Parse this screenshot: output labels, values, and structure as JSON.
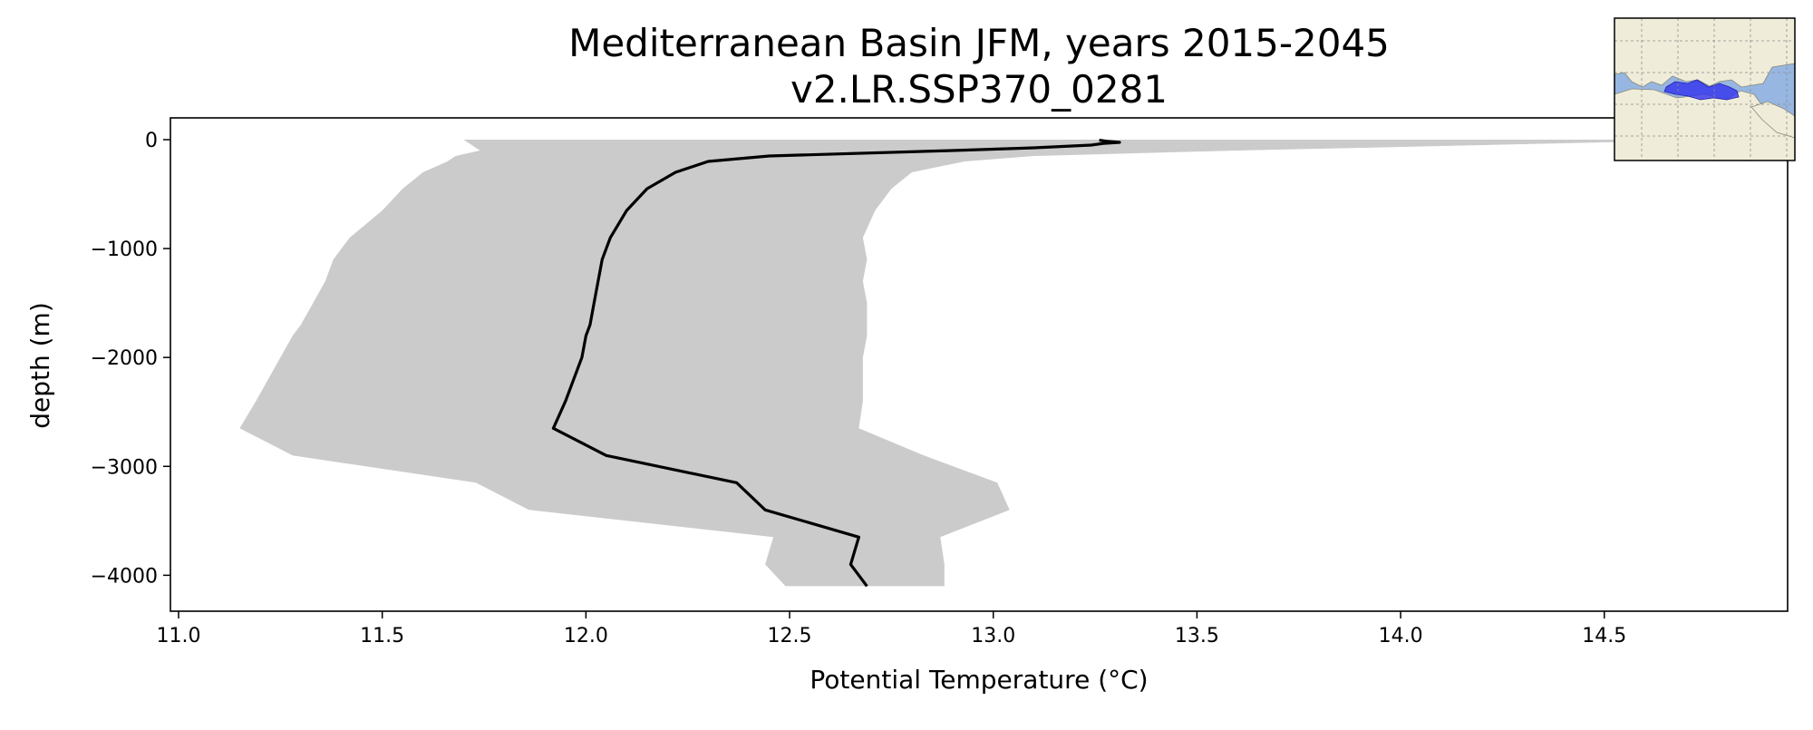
{
  "chart_data": {
    "type": "line",
    "title": "Mediterranean Basin JFM, years 2015-2045",
    "subtitle": "v2.LR.SSP370_0281",
    "xlabel": "Potential Temperature (°C)",
    "ylabel": "depth (m)",
    "xlim": [
      10.98,
      14.95
    ],
    "ylim": [
      -4330,
      200
    ],
    "x_ticks": [
      11.0,
      11.5,
      12.0,
      12.5,
      13.0,
      13.5,
      14.0,
      14.5
    ],
    "x_tick_labels": [
      "11.0",
      "11.5",
      "12.0",
      "12.5",
      "13.0",
      "13.5",
      "14.0",
      "14.5"
    ],
    "y_ticks": [
      0,
      -1000,
      -2000,
      -3000,
      -4000
    ],
    "y_tick_labels": [
      "0",
      "−1000",
      "−2000",
      "−3000",
      "−4000"
    ],
    "grid": false,
    "legend": "none",
    "series": [
      {
        "color": "#000000",
        "depth": [
          -5,
          -15,
          -25,
          -35,
          -50,
          -75,
          -100,
          -150,
          -200,
          -300,
          -450,
          -650,
          -900,
          -1100,
          -1300,
          -1500,
          -1700,
          -1800,
          -2000,
          -2200,
          -2400,
          -2650,
          -2900,
          -3150,
          -3400,
          -3650,
          -3900,
          -4100
        ],
        "temperature": [
          13.26,
          13.28,
          13.31,
          13.27,
          13.24,
          13.1,
          12.9,
          12.45,
          12.3,
          12.22,
          12.15,
          12.1,
          12.06,
          12.04,
          12.03,
          12.02,
          12.01,
          12.0,
          11.99,
          11.97,
          11.95,
          11.92,
          12.05,
          12.37,
          12.44,
          12.67,
          12.65,
          12.69
        ]
      }
    ],
    "range_band": {
      "color": "#cbcbcb",
      "depth": [
        0,
        -100,
        -150,
        -200,
        -300,
        -450,
        -650,
        -900,
        -1100,
        -1300,
        -1500,
        -1700,
        -1800,
        -2000,
        -2200,
        -2400,
        -2650,
        -2900,
        -3150,
        -3400,
        -3650,
        -3900,
        -4100
      ],
      "min": [
        11.7,
        11.74,
        11.68,
        11.66,
        11.6,
        11.55,
        11.5,
        11.42,
        11.38,
        11.36,
        11.33,
        11.3,
        11.28,
        11.25,
        11.22,
        11.19,
        11.15,
        11.28,
        11.73,
        11.86,
        12.46,
        12.44,
        12.49
      ],
      "max": [
        14.8,
        13.6,
        13.1,
        12.93,
        12.8,
        12.75,
        12.71,
        12.68,
        12.69,
        12.68,
        12.69,
        12.69,
        12.69,
        12.68,
        12.68,
        12.68,
        12.67,
        12.83,
        13.01,
        13.04,
        12.87,
        12.88,
        12.88
      ]
    },
    "inset_map": {
      "region": "Mediterranean Basin",
      "land_color": "#efecd9",
      "ocean_color": "#97b6e1",
      "highlight_color": "#3333ee"
    }
  }
}
